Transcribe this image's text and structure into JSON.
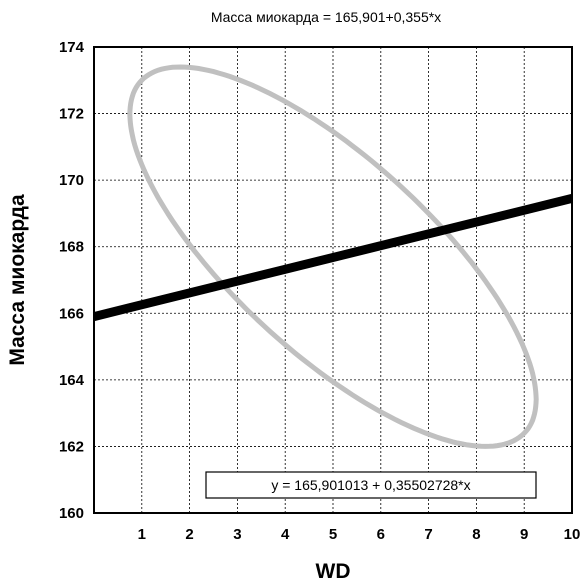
{
  "chart_data": {
    "type": "scatter",
    "title": "Масса миокарда  = 165,901+0,355*x",
    "xlabel": "WD",
    "ylabel": "Масса миокарда",
    "xlim": [
      0,
      10
    ],
    "ylim": [
      160,
      174
    ],
    "x_ticks": [
      1,
      2,
      3,
      4,
      5,
      6,
      7,
      8,
      9,
      10
    ],
    "y_ticks": [
      160,
      162,
      164,
      166,
      168,
      170,
      172,
      174
    ],
    "grid": true,
    "regression_line": {
      "intercept": 165.901013,
      "slope": 0.35502728,
      "x_range": [
        0,
        10
      ],
      "color": "#000000"
    },
    "confidence_ellipse": {
      "color": "#c0c0c0",
      "center": [
        5.0,
        167.7
      ],
      "extent_x": [
        0.9,
        9.4
      ],
      "extent_y": [
        162.0,
        173.4
      ]
    },
    "annotation": "y = 165,901013 + 0,35502728*x"
  }
}
